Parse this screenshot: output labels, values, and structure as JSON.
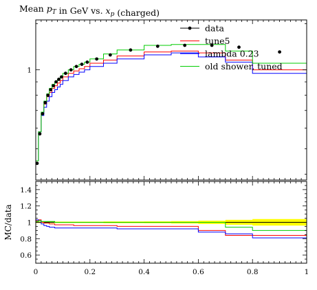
{
  "chart_data": [
    {
      "panel": "main",
      "type": "line",
      "title": "Mean p_T in GeV vs. x_p (charged)",
      "xlim": [
        0,
        1
      ],
      "ylim": [
        0.38,
        1.55
      ],
      "yscale": "log",
      "yticks": [
        {
          "value": 1,
          "label": "1"
        }
      ],
      "legend_position": "top-right",
      "bin_edges": [
        0,
        0.01,
        0.02,
        0.03,
        0.04,
        0.05,
        0.06,
        0.07,
        0.08,
        0.09,
        0.1,
        0.12,
        0.14,
        0.16,
        0.18,
        0.2,
        0.25,
        0.3,
        0.4,
        0.5,
        0.6,
        0.7,
        0.8,
        1.0
      ],
      "series": [
        {
          "name": "data",
          "color": "#000000",
          "style": "points",
          "x": [
            0.005,
            0.015,
            0.025,
            0.035,
            0.045,
            0.055,
            0.065,
            0.075,
            0.085,
            0.095,
            0.11,
            0.13,
            0.15,
            0.17,
            0.19,
            0.225,
            0.275,
            0.35,
            0.45,
            0.55,
            0.65,
            0.75,
            0.9
          ],
          "y": [
            0.44,
            0.57,
            0.68,
            0.75,
            0.8,
            0.84,
            0.87,
            0.9,
            0.92,
            0.94,
            0.97,
            1.0,
            1.03,
            1.05,
            1.07,
            1.1,
            1.14,
            1.19,
            1.23,
            1.24,
            1.24,
            1.22,
            1.17
          ]
        },
        {
          "name": "tune5",
          "color": "#ff0000",
          "style": "step",
          "y": [
            0.45,
            0.58,
            0.68,
            0.74,
            0.79,
            0.82,
            0.85,
            0.87,
            0.89,
            0.91,
            0.94,
            0.97,
            0.99,
            1.01,
            1.03,
            1.06,
            1.09,
            1.13,
            1.17,
            1.18,
            1.16,
            1.09,
            1.0
          ]
        },
        {
          "name": "lambda 0.23",
          "color": "#0000ff",
          "style": "step",
          "y": [
            0.45,
            0.58,
            0.67,
            0.72,
            0.76,
            0.79,
            0.82,
            0.84,
            0.86,
            0.88,
            0.91,
            0.94,
            0.96,
            0.98,
            1.0,
            1.03,
            1.06,
            1.1,
            1.14,
            1.16,
            1.12,
            1.07,
            0.97
          ]
        },
        {
          "name": "old shower, tuned",
          "color": "#00cc00",
          "style": "step",
          "y": [
            0.45,
            0.58,
            0.69,
            0.76,
            0.81,
            0.85,
            0.88,
            0.9,
            0.92,
            0.94,
            0.97,
            1.0,
            1.03,
            1.05,
            1.07,
            1.1,
            1.15,
            1.19,
            1.24,
            1.25,
            1.25,
            1.18,
            1.06
          ]
        }
      ]
    },
    {
      "panel": "ratio",
      "type": "line",
      "ylabel": "MC/data",
      "xlim": [
        0,
        1
      ],
      "ylim": [
        0.5,
        1.5
      ],
      "xticks": [
        {
          "value": 0,
          "label": "0"
        },
        {
          "value": 0.2,
          "label": "0.2"
        },
        {
          "value": 0.4,
          "label": "0.4"
        },
        {
          "value": 0.6,
          "label": "0.6"
        },
        {
          "value": 0.8,
          "label": "0.8"
        },
        {
          "value": 1,
          "label": "1"
        }
      ],
      "yticks": [
        {
          "value": 0.6,
          "label": "0.6"
        },
        {
          "value": 0.8,
          "label": "0.8"
        },
        {
          "value": 1,
          "label": "1"
        },
        {
          "value": 1.2,
          "label": "1.2"
        },
        {
          "value": 1.4,
          "label": "1.4"
        }
      ],
      "uncertainty_band": {
        "color": "#ffff00",
        "half_width": [
          0.008,
          0.008,
          0.008,
          0.008,
          0.008,
          0.008,
          0.008,
          0.008,
          0.008,
          0.008,
          0.008,
          0.008,
          0.008,
          0.008,
          0.008,
          0.008,
          0.01,
          0.01,
          0.012,
          0.015,
          0.02,
          0.03,
          0.04
        ]
      },
      "series": [
        {
          "name": "data",
          "color": "#000000",
          "style": "flat",
          "value": 1.0
        },
        {
          "name": "tune5",
          "color": "#ff0000",
          "style": "step",
          "y": [
            1.02,
            1.03,
            1.0,
            0.99,
            0.99,
            0.98,
            0.98,
            0.97,
            0.97,
            0.97,
            0.97,
            0.97,
            0.96,
            0.96,
            0.96,
            0.96,
            0.96,
            0.95,
            0.95,
            0.95,
            0.9,
            0.84,
            0.84
          ]
        },
        {
          "name": "lambda 0.23",
          "color": "#0000ff",
          "style": "step",
          "y": [
            1.03,
            1.02,
            0.98,
            0.96,
            0.95,
            0.94,
            0.94,
            0.93,
            0.93,
            0.93,
            0.93,
            0.93,
            0.93,
            0.93,
            0.93,
            0.93,
            0.93,
            0.92,
            0.92,
            0.92,
            0.88,
            0.86,
            0.81
          ]
        },
        {
          "name": "old shower, tuned",
          "color": "#00cc00",
          "style": "step",
          "y": [
            1.01,
            1.02,
            1.01,
            1.01,
            1.01,
            1.01,
            1.01,
            1.0,
            1.0,
            1.0,
            1.0,
            1.0,
            1.0,
            1.0,
            1.0,
            1.0,
            1.0,
            1.0,
            1.0,
            1.0,
            1.0,
            0.94,
            0.9
          ]
        }
      ]
    }
  ]
}
